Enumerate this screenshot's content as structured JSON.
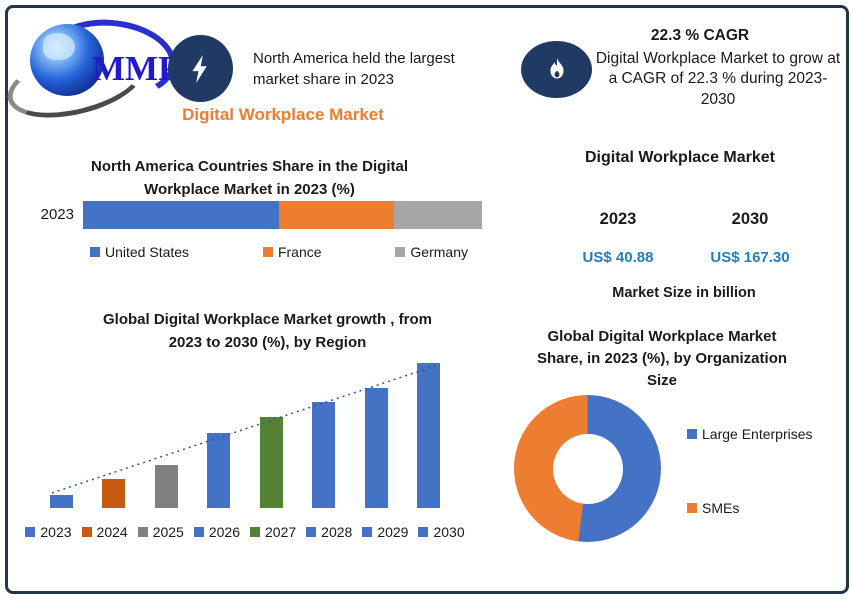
{
  "logo": {
    "text": "MMR"
  },
  "icons": {
    "logo": "globe-logo",
    "left_badge": "lightning-bolt-icon",
    "right_badge": "flame-icon"
  },
  "colors": {
    "navy": "#213A64",
    "border_navy": "#233649",
    "accent_orange": "#ED7D31",
    "value_blue": "#1F7DC5",
    "trendline": "#2F5496"
  },
  "header_left": {
    "callout": "North America held the largest market share in 2023",
    "title": "Digital Workplace Market"
  },
  "header_right": {
    "cagr_title": "22.3 % CAGR",
    "callout": "Digital Workplace Market to grow at a CAGR of 22.3 % during 2023-2030"
  },
  "chart_data": [
    {
      "id": "country_share",
      "type": "bar",
      "subtype": "stacked-horizontal",
      "title": "North America Countries Share in the  Digital Workplace Market   in 2023 (%)",
      "title_lines": [
        "North America Countries Share in the  Digital",
        "Workplace Market   in 2023 (%)"
      ],
      "row_label": "2023",
      "legend_position": "bottom",
      "grid": false,
      "series": [
        {
          "name": "United States",
          "value": 49,
          "color": "#4472C4"
        },
        {
          "name": "France",
          "value": 29,
          "color": "#ED7D31"
        },
        {
          "name": "Germany",
          "value": 22,
          "color": "#A6A6A6"
        }
      ]
    },
    {
      "id": "growth_by_region",
      "type": "bar",
      "title": "Global Digital Workplace Market growth , from 2023 to 2030 (%), by Region",
      "title_lines": [
        "Global Digital Workplace Market growth , from",
        "2023 to 2030 (%), by Region"
      ],
      "categories": [
        "2023",
        "2024",
        "2025",
        "2026",
        "2027",
        "2028",
        "2029",
        "2030"
      ],
      "values": [
        9,
        20,
        30,
        52,
        63,
        73,
        83,
        100
      ],
      "value_scale": "relative-estimate (no axis shown)",
      "colors": [
        "#4472C4",
        "#C55A11",
        "#808080",
        "#4472C4",
        "#548235",
        "#4472C4",
        "#4472C4",
        "#4472C4"
      ],
      "trendline": true,
      "trendline_style": "dotted",
      "ylim": [
        0,
        100
      ],
      "grid": false,
      "legend_position": "bottom"
    },
    {
      "id": "org_share",
      "type": "pie",
      "subtype": "donut",
      "title": "Global Digital Workplace Market Share, in 2023 (%), by Organization Size",
      "title_lines": [
        "Global Digital Workplace Market",
        "Share, in 2023 (%), by Organization",
        "Size"
      ],
      "start_angle": 0,
      "legend_position": "right",
      "slices": [
        {
          "name": "Large Enterprises",
          "value": 52,
          "color": "#4472C4"
        },
        {
          "name": "SMEs",
          "value": 48,
          "color": "#ED7D31"
        }
      ]
    },
    {
      "id": "market_size",
      "type": "table",
      "title": "Digital Workplace Market",
      "columns": [
        "2023",
        "2030"
      ],
      "values": [
        40.88,
        167.3
      ],
      "display": [
        "US$ 40.88",
        "US$ 167.30"
      ],
      "caption": "Market Size in billion"
    }
  ]
}
